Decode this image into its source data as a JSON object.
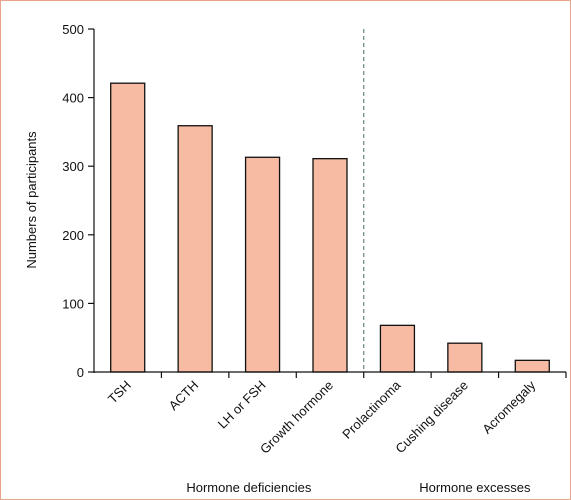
{
  "chart_data": {
    "type": "bar",
    "categories": [
      "TSH",
      "ACTH",
      "LH or FSH",
      "Growth hormone",
      "Prolactinoma",
      "Cushing disease",
      "Acromegaly"
    ],
    "values": [
      421,
      359,
      313,
      311,
      68,
      42,
      17
    ],
    "ylabel": "Numbers of participants",
    "xlabel": "",
    "ylim": [
      0,
      500
    ],
    "yticks": [
      0,
      100,
      200,
      300,
      400,
      500
    ],
    "grid": false,
    "groups": [
      {
        "label": "Hormone deficiencies",
        "categories": [
          "TSH",
          "ACTH",
          "LH or FSH",
          "Growth hormone"
        ]
      },
      {
        "label": "Hormone excesses",
        "categories": [
          "Prolactinoma",
          "Cushing disease",
          "Acromegaly"
        ]
      }
    ],
    "divider": "dashed vertical line between Growth hormone and Prolactinoma",
    "colors": {
      "bar_fill": "#f7bba3",
      "bar_stroke": "#111111",
      "divider": "#6f8e8e",
      "frame": "#e8a48c"
    }
  }
}
